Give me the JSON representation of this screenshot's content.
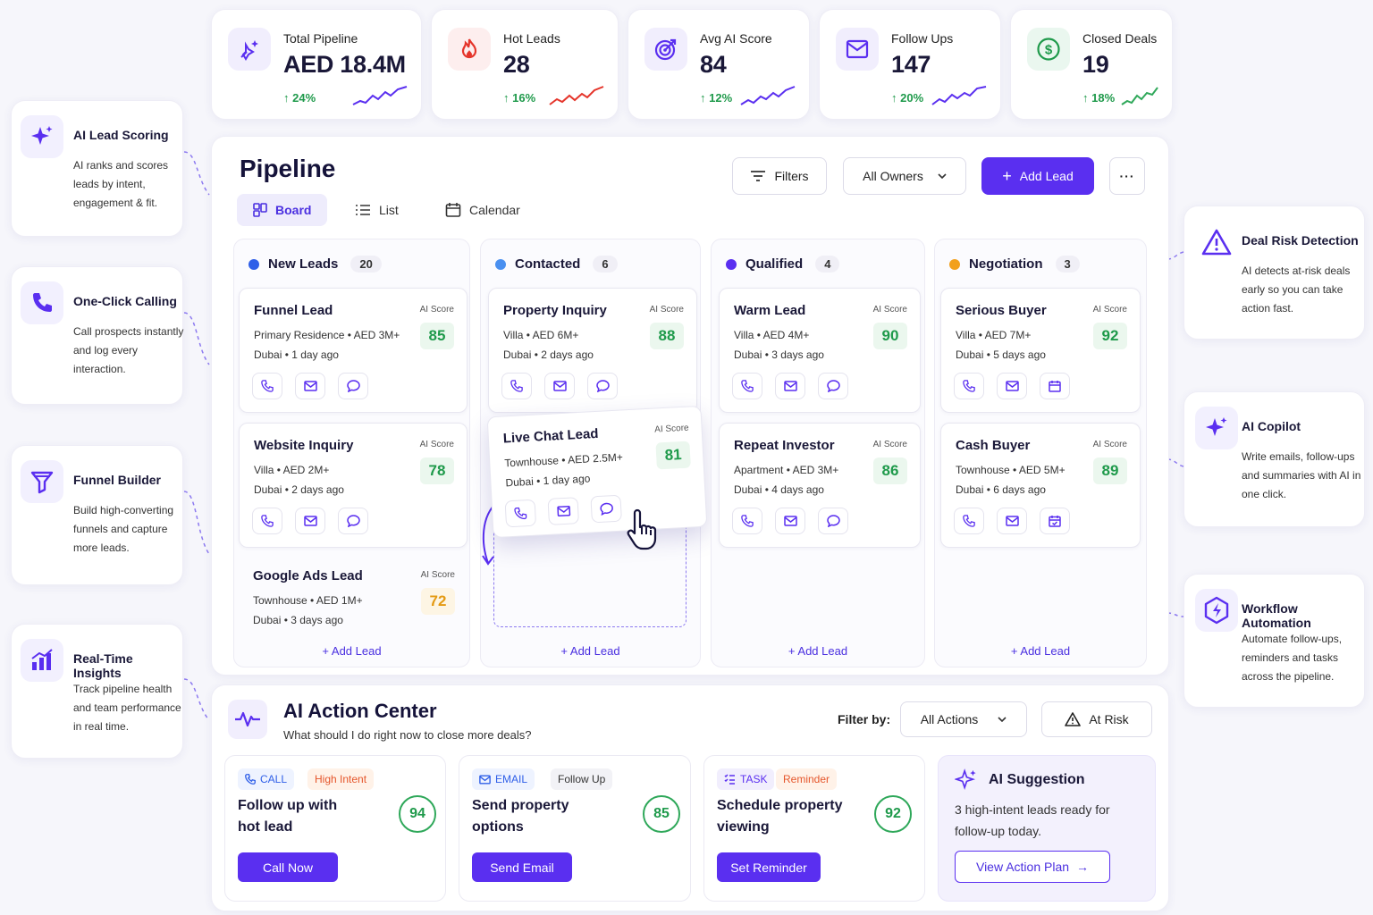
{
  "kpis": [
    {
      "label": "Total Pipeline",
      "value": "AED 18.4M",
      "change": "24%",
      "icon": "sparkle-rocket-icon",
      "color": "#5a2ff0",
      "bg": "#f1eefd"
    },
    {
      "label": "Hot Leads",
      "value": "28",
      "change": "16%",
      "icon": "flame-icon",
      "color": "#e5352b",
      "bg": "#fdeeee"
    },
    {
      "label": "Avg AI Score",
      "value": "84",
      "change": "12%",
      "icon": "target-icon",
      "color": "#5a2ff0",
      "bg": "#f1eefd"
    },
    {
      "label": "Follow Ups",
      "value": "147",
      "change": "20%",
      "icon": "mail-icon",
      "color": "#5a2ff0",
      "bg": "#f1eefd"
    },
    {
      "label": "Closed Deals",
      "value": "19",
      "change": "18%",
      "icon": "dollar-icon",
      "color": "#1f9a4b",
      "bg": "#eaf7ef"
    }
  ],
  "left_features": [
    {
      "title": "AI Lead Scoring",
      "desc": "AI ranks and scores leads by intent, engagement & fit.",
      "icon": "sparkle-icon"
    },
    {
      "title": "One-Click Calling",
      "desc": "Call prospects instantly and log every interaction.",
      "icon": "phone-icon"
    },
    {
      "title": "Funnel Builder",
      "desc": "Build high-converting funnels and capture more leads.",
      "icon": "funnel-icon"
    },
    {
      "title": "Real-Time Insights",
      "desc": "Track pipeline health and team performance in real time.",
      "icon": "bar-chart-icon"
    }
  ],
  "right_features": [
    {
      "title": "Deal Risk Detection",
      "desc": "AI detects at-risk deals early so you can take action fast.",
      "icon": "warning-icon"
    },
    {
      "title": "AI Copilot",
      "desc": "Write emails, follow-ups and summaries with AI in one click.",
      "icon": "sparkle-icon"
    },
    {
      "title": "Workflow Automation",
      "desc": "Automate follow-ups, reminders and tasks across the pipeline.",
      "icon": "bolt-hexagon-icon"
    }
  ],
  "pipeline": {
    "title": "Pipeline",
    "tabs": [
      "Board",
      "List",
      "Calendar"
    ],
    "filters": "Filters",
    "owners": "All Owners",
    "add_lead": "Add Lead",
    "columns": [
      {
        "name": "New Leads",
        "count": "20",
        "color": "#2f5fe8"
      },
      {
        "name": "Contacted",
        "count": "6",
        "color": "#4a90f0"
      },
      {
        "name": "Qualified",
        "count": "4",
        "color": "#5a2ff0"
      },
      {
        "name": "Negotiation",
        "count": "3",
        "color": "#f2a01c"
      }
    ],
    "add_lead_link": "+ Add Lead",
    "score_label": "AI Score",
    "leads": {
      "new": [
        {
          "name": "Funnel Lead",
          "line1": "Primary Residence • AED 3M+",
          "line2": "Dubai • 1 day ago",
          "score": "85"
        },
        {
          "name": "Website Inquiry",
          "line1": "Villa • AED 2M+",
          "line2": "Dubai • 2 days ago",
          "score": "78"
        },
        {
          "name": "Google Ads Lead",
          "line1": "Townhouse • AED 1M+",
          "line2": "Dubai • 3 days ago",
          "score": "72"
        }
      ],
      "contacted": [
        {
          "name": "Property Inquiry",
          "line1": "Villa • AED 6M+",
          "line2": "Dubai • 2 days ago",
          "score": "88"
        },
        {
          "name": "Live Chat Lead",
          "line1": "Townhouse • AED 2.5M+",
          "line2": "Dubai • 1 day ago",
          "score": "81"
        }
      ],
      "qualified": [
        {
          "name": "Warm Lead",
          "line1": "Villa • AED 4M+",
          "line2": "Dubai • 3 days ago",
          "score": "90"
        },
        {
          "name": "Repeat Investor",
          "line1": "Apartment • AED 3M+",
          "line2": "Dubai • 4 days ago",
          "score": "86"
        }
      ],
      "negotiation": [
        {
          "name": "Serious Buyer",
          "line1": "Villa • AED 7M+",
          "line2": "Dubai • 5 days ago",
          "score": "92"
        },
        {
          "name": "Cash Buyer",
          "line1": "Townhouse • AED 5M+",
          "line2": "Dubai • 6 days ago",
          "score": "89"
        }
      ]
    }
  },
  "action_center": {
    "title": "AI Action Center",
    "subtitle": "What should I do right now to close more deals?",
    "filter_label": "Filter by:",
    "filter_value": "All Actions",
    "at_risk": "At Risk",
    "cards": [
      {
        "type": "CALL",
        "tag": "High Intent",
        "title": "Follow up with hot lead",
        "score": "94",
        "button": "Call Now"
      },
      {
        "type": "EMAIL",
        "tag": "Follow Up",
        "title": "Send property options",
        "score": "85",
        "button": "Send Email"
      },
      {
        "type": "TASK",
        "tag": "Reminder",
        "title": "Schedule property viewing",
        "score": "92",
        "button": "Set Reminder"
      }
    ],
    "suggestion": {
      "title": "AI Suggestion",
      "text": "3 high-intent leads ready for follow-up today.",
      "button": "View Action Plan"
    }
  }
}
